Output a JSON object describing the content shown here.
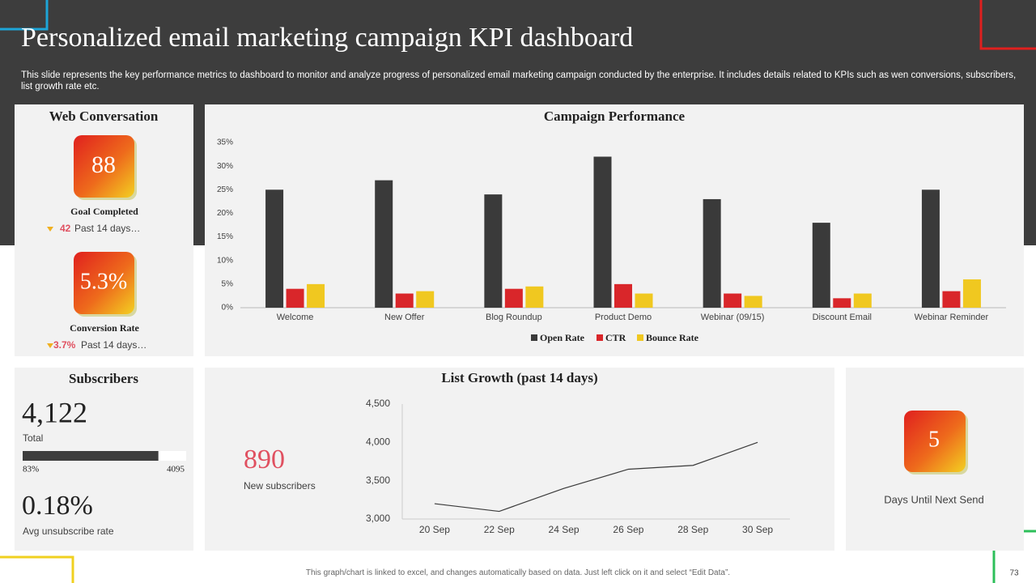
{
  "header": {
    "title": "Personalized email marketing campaign KPI dashboard",
    "description": "This slide represents the key performance metrics to dashboard to monitor and analyze progress of personalized email marketing campaign conducted by the enterprise. It includes details related to KPIs such as wen conversions, subscribers, list growth rate etc."
  },
  "web_conversation": {
    "title": "Web Conversation",
    "goal_value": "88",
    "goal_label": "Goal Completed",
    "goal_change": "42",
    "goal_period": "Past 14 days…",
    "rate_value": "5.3%",
    "rate_label": "Conversion Rate",
    "rate_change": "3.7%",
    "rate_period": "Past 14 days…"
  },
  "subscribers": {
    "title": "Subscribers",
    "total": "4,122",
    "total_label": "Total",
    "progress": {
      "value": 83,
      "label": "83%"
    },
    "progress_end": "4095",
    "unsubscribe": "0.18%",
    "unsubscribe_label": "Avg unsubscribe rate"
  },
  "new_subscribers": {
    "value": "890",
    "label": "New  subscribers"
  },
  "next_send": {
    "value": "5",
    "label": "Days Until Next Send"
  },
  "footer": {
    "note": "This graph/chart is linked to excel, and changes automatically based on data. Just left click on it and select “Edit Data”.",
    "page": "73"
  },
  "chart_data": [
    {
      "type": "bar",
      "title": "Campaign Performance",
      "categories": [
        "Welcome",
        "New Offer",
        "Blog Roundup",
        "Product Demo",
        "Webinar (09/15)",
        "Discount Email",
        "Webinar Reminder"
      ],
      "series": [
        {
          "name": "Open Rate",
          "color": "#3a3a3a",
          "values": [
            25,
            27,
            24,
            32,
            23,
            18,
            25
          ]
        },
        {
          "name": "CTR",
          "color": "#d9262a",
          "values": [
            4,
            3,
            4,
            5,
            3,
            2,
            3.5
          ]
        },
        {
          "name": "Bounce Rate",
          "color": "#f0c820",
          "values": [
            5,
            3.5,
            4.5,
            3,
            2.5,
            3,
            6
          ]
        }
      ],
      "ylim": [
        0,
        35
      ],
      "yticks": [
        {
          "value": 0,
          "label": "0%"
        },
        {
          "value": 5,
          "label": "5%"
        },
        {
          "value": 10,
          "label": "10%"
        },
        {
          "value": 15,
          "label": "15%"
        },
        {
          "value": 20,
          "label": "20%"
        },
        {
          "value": 25,
          "label": "25%"
        },
        {
          "value": 30,
          "label": "30%"
        },
        {
          "value": 35,
          "label": "35%"
        }
      ],
      "grid": false,
      "legend": "bottom"
    },
    {
      "type": "line",
      "title": "List Growth (past 14 days)",
      "categories": [
        "20 Sep",
        "22 Sep",
        "24 Sep",
        "26 Sep",
        "28 Sep",
        "30 Sep"
      ],
      "series": [
        {
          "color": "#3a3a3a",
          "values": [
            3200,
            3100,
            3400,
            3650,
            3700,
            4000
          ]
        }
      ],
      "ylim": [
        3000,
        4500
      ],
      "yticks": [
        {
          "value": 3000,
          "label": "3,000"
        },
        {
          "value": 3500,
          "label": "3,500"
        },
        {
          "value": 4000,
          "label": "4,000"
        },
        {
          "value": 4500,
          "label": "4,500"
        }
      ],
      "grid": false
    }
  ]
}
